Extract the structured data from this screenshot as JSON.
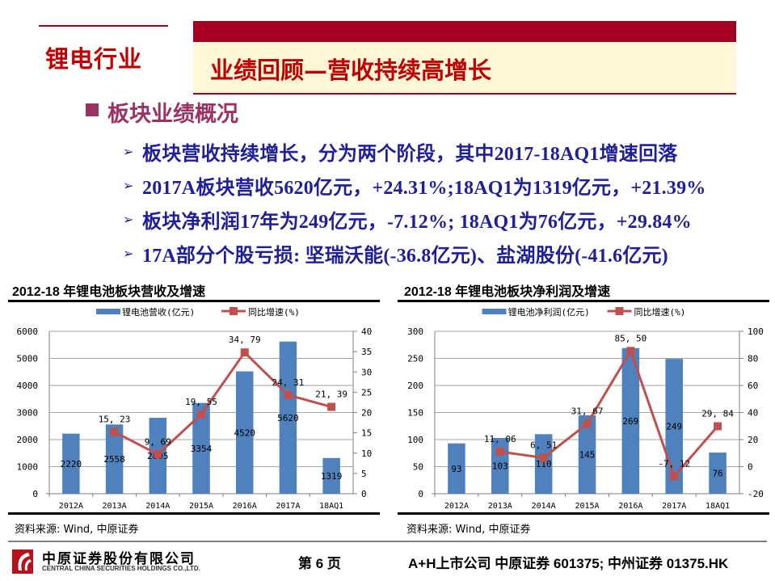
{
  "header": {
    "sector_label": "锂电行业",
    "page_title": "业绩回顾—营收持续高增长",
    "colors": {
      "brand_red": "#A50021",
      "title_red": "#C00000",
      "cream": "#FFF8D8"
    }
  },
  "section": {
    "title": "板块业绩概况",
    "bullets": [
      {
        "text": "板块营收持续增长，分为两个阶段，其中2017-18AQ1增速回落"
      },
      {
        "text": "2017A板块营收5620亿元，+24.31%;18AQ1为1319亿元，+21.39%"
      },
      {
        "text": "板块净利润17年为249亿元，-7.12%; 18AQ1为76亿元，+29.84%"
      },
      {
        "text": "17A部分个股亏损: 坚瑞沃能(-36.8亿元)、盐湖股份(-41.6亿元)"
      }
    ]
  },
  "charts": {
    "left": {
      "source": "资料来源: Wind, 中原证券"
    },
    "right": {
      "source": "资料来源: Wind, 中原证券"
    }
  },
  "chart_data": [
    {
      "type": "bar",
      "title": "2012-18 年锂电池板块营收及增速",
      "categories": [
        "2012A",
        "2013A",
        "2014A",
        "2015A",
        "2016A",
        "2017A",
        "18AQ1"
      ],
      "series": [
        {
          "name": "锂电池营收(亿元)",
          "type": "bar",
          "axis": "left",
          "color": "#4F81BD",
          "values": [
            2220,
            2558,
            2805,
            3354,
            4520,
            5620,
            1319
          ],
          "labels": [
            "2220",
            "2558",
            "2805",
            "3354",
            "4520",
            "5620",
            "1319"
          ]
        },
        {
          "name": "同比增速(%)",
          "type": "line",
          "axis": "right",
          "color": "#C0504D",
          "values": [
            null,
            15.23,
            9.69,
            19.55,
            34.79,
            24.31,
            21.39
          ],
          "labels": [
            "",
            "15.23",
            "9.69",
            "19.55",
            "34.79",
            "24.31",
            "21.39"
          ]
        }
      ],
      "y_left": {
        "min": 0,
        "max": 6000,
        "ticks": [
          0,
          1000,
          2000,
          3000,
          4000,
          5000,
          6000
        ]
      },
      "y_right": {
        "min": 0,
        "max": 40,
        "ticks": [
          0,
          5,
          10,
          15,
          20,
          25,
          30,
          35,
          40
        ]
      },
      "grid": true,
      "legend_position": "top"
    },
    {
      "type": "bar",
      "title": "2012-18 年锂电池板块净利润及增速",
      "categories": [
        "2012A",
        "2013A",
        "2014A",
        "2015A",
        "2016A",
        "2017A",
        "18AQ1"
      ],
      "series": [
        {
          "name": "锂电池净利润(亿元)",
          "type": "bar",
          "axis": "left",
          "color": "#4F81BD",
          "values": [
            93,
            103,
            110,
            145,
            269,
            249,
            76
          ],
          "labels": [
            "93",
            "103",
            "110",
            "145",
            "269",
            "249",
            "76"
          ]
        },
        {
          "name": "同比增速(%)",
          "type": "line",
          "axis": "right",
          "color": "#C0504D",
          "values": [
            null,
            11.06,
            6.51,
            31.67,
            85.5,
            -7.12,
            29.84
          ],
          "labels": [
            "",
            "11.06",
            "6.51",
            "31.67",
            "85.50",
            "-7.12",
            "29.84"
          ]
        }
      ],
      "y_left": {
        "min": 0,
        "max": 300,
        "ticks": [
          0,
          50,
          100,
          150,
          200,
          250,
          300
        ]
      },
      "y_right": {
        "min": -20,
        "max": 100,
        "ticks": [
          -20,
          0,
          20,
          40,
          60,
          80,
          100
        ]
      },
      "grid": true,
      "legend_position": "top"
    }
  ],
  "footer": {
    "company_cn": "中原证券股份有限公司",
    "company_en": "CENTRAL CHINA SECURITIES HOLDINGS CO.,LTD.",
    "page_number": "第 6 页",
    "listing_info": "A+H上市公司 中原证券 601375;  中州证券 01375.HK"
  }
}
